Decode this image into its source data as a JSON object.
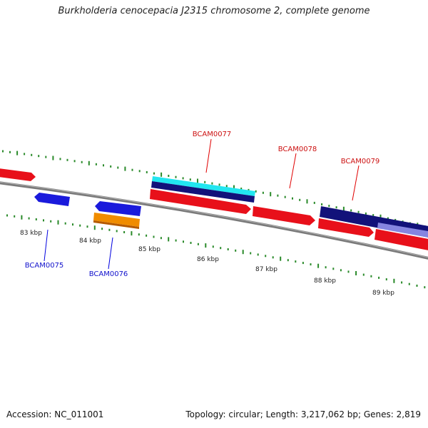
{
  "title": "Burkholderia cenocepacia J2315 chromosome 2, complete genome",
  "footer": {
    "accession": "Accession: NC_011001",
    "info": "Topology: circular; Length: 3,217,062 bp; Genes: 2,819"
  },
  "colors": {
    "forward_gene": "#e8101a",
    "reverse_gene": "#1a1adc",
    "orange_gene": "#f08c00",
    "cyan_feature": "#22e6f0",
    "navy_feature": "#12127a",
    "lavender_feature": "#8080e0",
    "backbone": "#808080",
    "tick": "#2a8a2a",
    "label_forward": "#cc1010",
    "label_reverse": "#1010cc"
  },
  "scale_labels": [
    "83 kbp",
    "84 kbp",
    "85 kbp",
    "86 kbp",
    "87 kbp",
    "88 kbp",
    "89 kbp"
  ],
  "gene_labels": {
    "BCAM0075": "BCAM0075",
    "BCAM0076": "BCAM0076",
    "BCAM0077": "BCAM0077",
    "BCAM0078": "BCAM0078",
    "BCAM0079": "BCAM0079"
  }
}
